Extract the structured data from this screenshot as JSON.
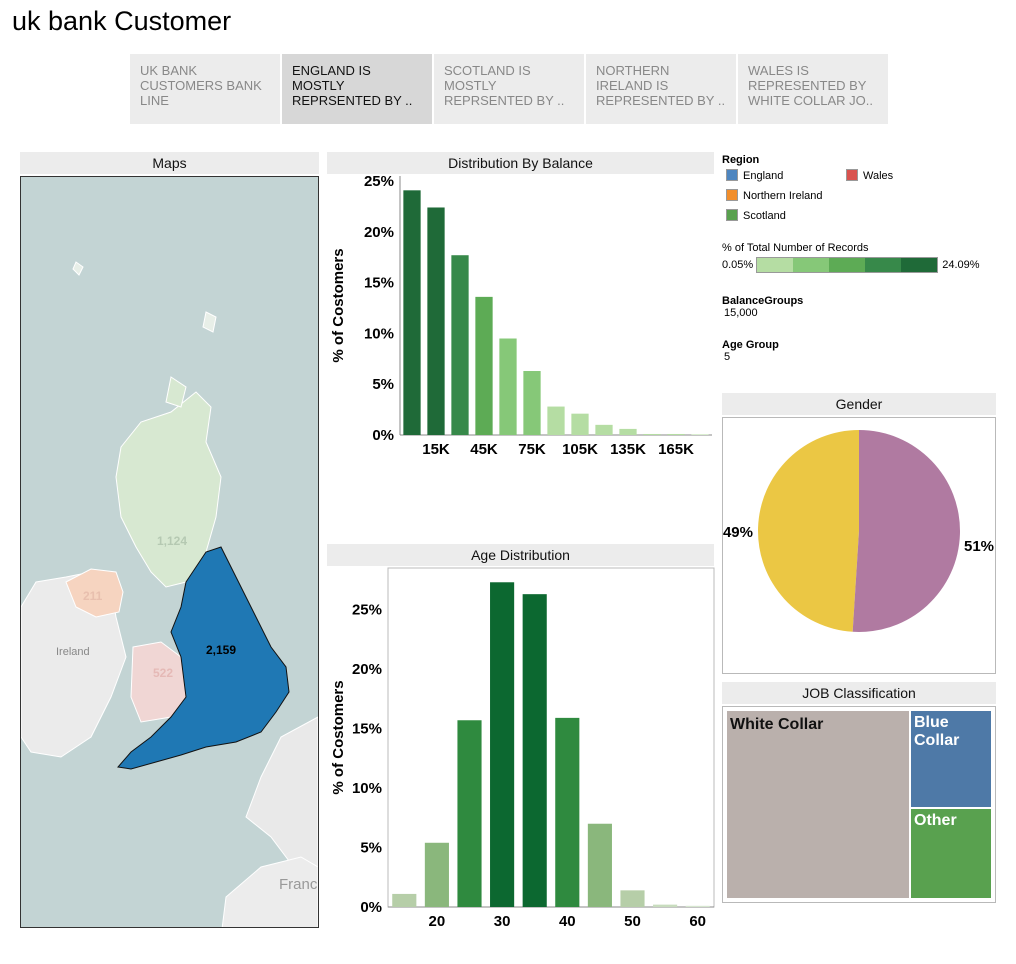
{
  "page": {
    "title": "uk bank Customer"
  },
  "tabs": [
    {
      "label": "UK BANK CUSTOMERS BANK LINE",
      "active": false
    },
    {
      "label": "ENGLAND IS MOSTLY REPRSENTED BY ..",
      "active": true
    },
    {
      "label": "SCOTLAND IS MOSTLY REPRSENTED BY ..",
      "active": false
    },
    {
      "label": "NORTHERN IRELAND IS REPRESENTED BY ..",
      "active": false
    },
    {
      "label": "WALES IS REPRESENTED BY WHITE COLLAR JO..",
      "active": false
    }
  ],
  "map": {
    "title": "Maps",
    "labels": {
      "scotland": "1,124",
      "northern_ireland": "211",
      "england": "2,159",
      "wales": "522",
      "ireland": "Ireland",
      "france": "France"
    }
  },
  "legend": {
    "region_title": "Region",
    "regions": [
      {
        "name": "England",
        "color": "#4e86c0"
      },
      {
        "name": "Wales",
        "color": "#d9534f"
      },
      {
        "name": "Northern Ireland",
        "color": "#f28e2b"
      },
      {
        "name": "Scotland",
        "color": "#59a14f"
      }
    ],
    "records_title": "% of Total Number of Records",
    "records_min": "0.05%",
    "records_max": "24.09%",
    "records_colors": [
      "#b5dda3",
      "#86c878",
      "#5dab55",
      "#37894a",
      "#1f6a38"
    ],
    "balance_title": "BalanceGroups",
    "balance_value": "15,000",
    "age_title": "Age Group",
    "age_value": "5"
  },
  "chart_data": [
    {
      "type": "bar",
      "title": "Distribution By Balance",
      "ylabel": "% of Costomers",
      "ylim": [
        0,
        25
      ],
      "yticks": [
        "0%",
        "5%",
        "10%",
        "15%",
        "20%",
        "25%"
      ],
      "xticks": [
        {
          "label": "15K",
          "index": 1
        },
        {
          "label": "45K",
          "index": 3
        },
        {
          "label": "75K",
          "index": 5
        },
        {
          "label": "105K",
          "index": 7
        },
        {
          "label": "135K",
          "index": 9
        },
        {
          "label": "165K",
          "index": 11
        }
      ],
      "values": [
        24.09,
        22.4,
        17.7,
        13.6,
        9.5,
        6.3,
        2.8,
        2.1,
        1.0,
        0.6,
        0.1,
        0.1,
        0.05
      ],
      "colors": [
        "#1f6a38",
        "#1f6a38",
        "#37894a",
        "#5dab55",
        "#86c878",
        "#86c878",
        "#b5dda3",
        "#b5dda3",
        "#b5dda3",
        "#b5dda3",
        "#b5dda3",
        "#b5dda3",
        "#b5dda3"
      ]
    },
    {
      "type": "bar",
      "title": "Age Distribution",
      "ylabel": "% of Costomers",
      "ylim": [
        0,
        25
      ],
      "yticks": [
        "0%",
        "5%",
        "10%",
        "15%",
        "20%",
        "25%"
      ],
      "xticks": [
        {
          "label": "20",
          "index": 1
        },
        {
          "label": "30",
          "index": 3
        },
        {
          "label": "40",
          "index": 5
        },
        {
          "label": "50",
          "index": 7
        },
        {
          "label": "60",
          "index": 9
        }
      ],
      "values": [
        1.1,
        5.4,
        15.7,
        27.3,
        26.3,
        15.9,
        7.0,
        1.4,
        0.2,
        0.1
      ],
      "colors": [
        "#b6cea8",
        "#8ab77c",
        "#2f8a3f",
        "#0c6830",
        "#0c6830",
        "#2f8a3f",
        "#8ab77c",
        "#b6cea8",
        "#c8dcbe",
        "#d6e6cf"
      ]
    },
    {
      "type": "pie",
      "title": "Gender",
      "slices": [
        {
          "label": "49%",
          "value": 49,
          "color": "#ebc744"
        },
        {
          "label": "51%",
          "value": 51,
          "color": "#b07aa1"
        }
      ]
    },
    {
      "type": "treemap",
      "title": "JOB Classification",
      "items": [
        {
          "label": "White Collar",
          "color": "#bab0ac"
        },
        {
          "label": "Blue Collar",
          "color": "#4e79a7"
        },
        {
          "label": "Other",
          "color": "#59a14f"
        }
      ]
    }
  ]
}
